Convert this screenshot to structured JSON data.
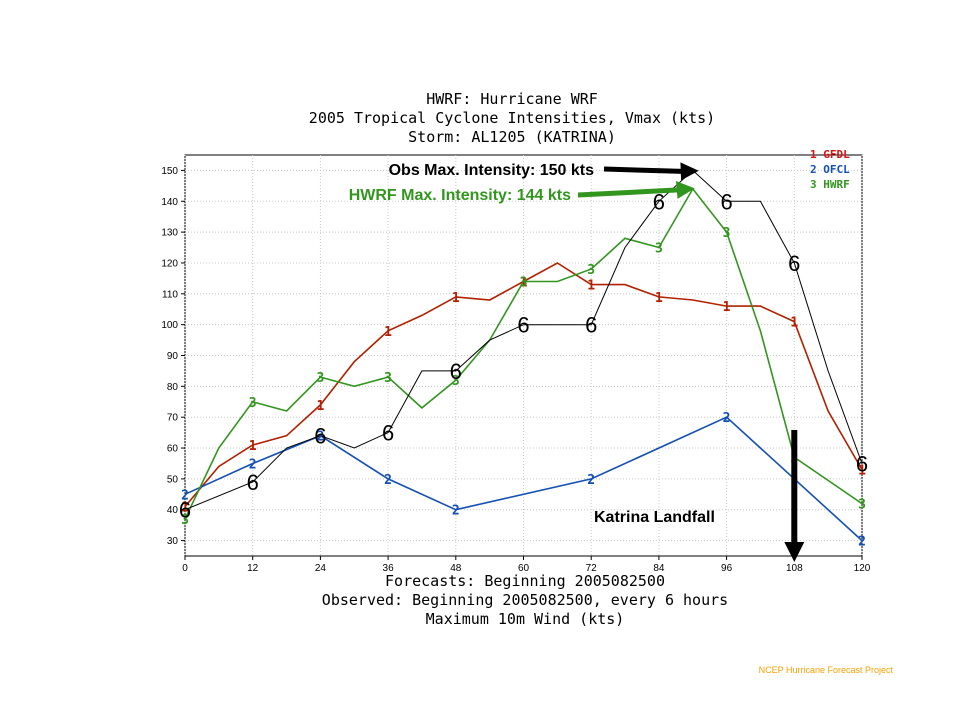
{
  "chart_data": {
    "type": "line",
    "title_lines": [
      "HWRF: Hurricane WRF",
      "2005 Tropical Cyclone Intensities, Vmax (kts)",
      "Storm: AL1205 (KATRINA)"
    ],
    "xlabel_lines": [
      "Forecasts: Beginning 2005082500",
      "Observed: Beginning 2005082500, every 6 hours",
      "Maximum 10m Wind (kts)"
    ],
    "xlim": [
      0,
      120
    ],
    "ylim": [
      25,
      155
    ],
    "x_ticks": [
      0,
      12,
      24,
      36,
      48,
      60,
      72,
      84,
      96,
      108,
      120
    ],
    "y_ticks": [
      30,
      40,
      50,
      60,
      70,
      80,
      90,
      100,
      110,
      120,
      130,
      140,
      150
    ],
    "legend_position": "top-right",
    "series": [
      {
        "name": "GFDL",
        "legend_label": "1 GFDL",
        "marker": "1",
        "color": "#b22000",
        "x": [
          0,
          6,
          12,
          18,
          24,
          30,
          36,
          42,
          48,
          54,
          60,
          66,
          72,
          78,
          84,
          90,
          96,
          102,
          108,
          114,
          120
        ],
        "y": [
          41,
          54,
          61,
          64,
          74,
          88,
          98,
          103,
          109,
          108,
          114,
          120,
          113,
          113,
          109,
          108,
          106,
          106,
          101,
          72,
          53
        ],
        "marker_x": [
          0,
          12,
          24,
          36,
          48,
          60,
          72,
          84,
          96,
          108,
          120
        ]
      },
      {
        "name": "OFCL",
        "legend_label": "2 OFCL",
        "marker": "2",
        "color": "#1450b4",
        "x": [
          0,
          12,
          24,
          36,
          48,
          72,
          96,
          120
        ],
        "y": [
          45,
          55,
          64,
          50,
          40,
          50,
          70,
          30
        ],
        "marker_x": [
          0,
          12,
          24,
          36,
          48,
          72,
          96,
          120
        ]
      },
      {
        "name": "HWRF",
        "legend_label": "3 HWRF",
        "marker": "3",
        "color": "#32961e",
        "x": [
          0,
          6,
          12,
          18,
          24,
          30,
          36,
          42,
          48,
          54,
          60,
          66,
          72,
          78,
          84,
          90,
          96,
          102,
          108,
          120
        ],
        "y": [
          37,
          60,
          75,
          72,
          83,
          80,
          83,
          73,
          82,
          95,
          114,
          114,
          118,
          128,
          125,
          144,
          130,
          98,
          57,
          42
        ],
        "marker_x": [
          0,
          12,
          24,
          36,
          48,
          60,
          72,
          84,
          96,
          108,
          120
        ]
      },
      {
        "name": "Observed",
        "marker": "6",
        "color": "#000000",
        "x": [
          0,
          12,
          18,
          24,
          30,
          36,
          42,
          48,
          54,
          60,
          72,
          78,
          84,
          90,
          96,
          102,
          108,
          114,
          120
        ],
        "y": [
          40,
          49,
          60,
          64,
          60,
          65,
          85,
          85,
          95,
          100,
          100,
          125,
          140,
          150,
          140,
          140,
          120,
          85,
          55
        ],
        "marker_x": [
          0,
          12,
          24,
          36,
          48,
          60,
          72,
          84,
          96,
          108,
          120
        ]
      }
    ],
    "annotations": [
      {
        "text": "Obs Max. Intensity: 150 kts",
        "color": "#000000",
        "arrow_to_x": 90,
        "arrow_to_y": 150
      },
      {
        "text": "HWRF Max. Intensity: 144 kts",
        "color": "#32961e",
        "arrow_to_x": 90,
        "arrow_to_y": 144
      },
      {
        "text": "Katrina Landfall",
        "color": "#000000",
        "arrow_at_x": 108
      }
    ]
  },
  "credit": "NCEP Hurricane Forecast Project"
}
